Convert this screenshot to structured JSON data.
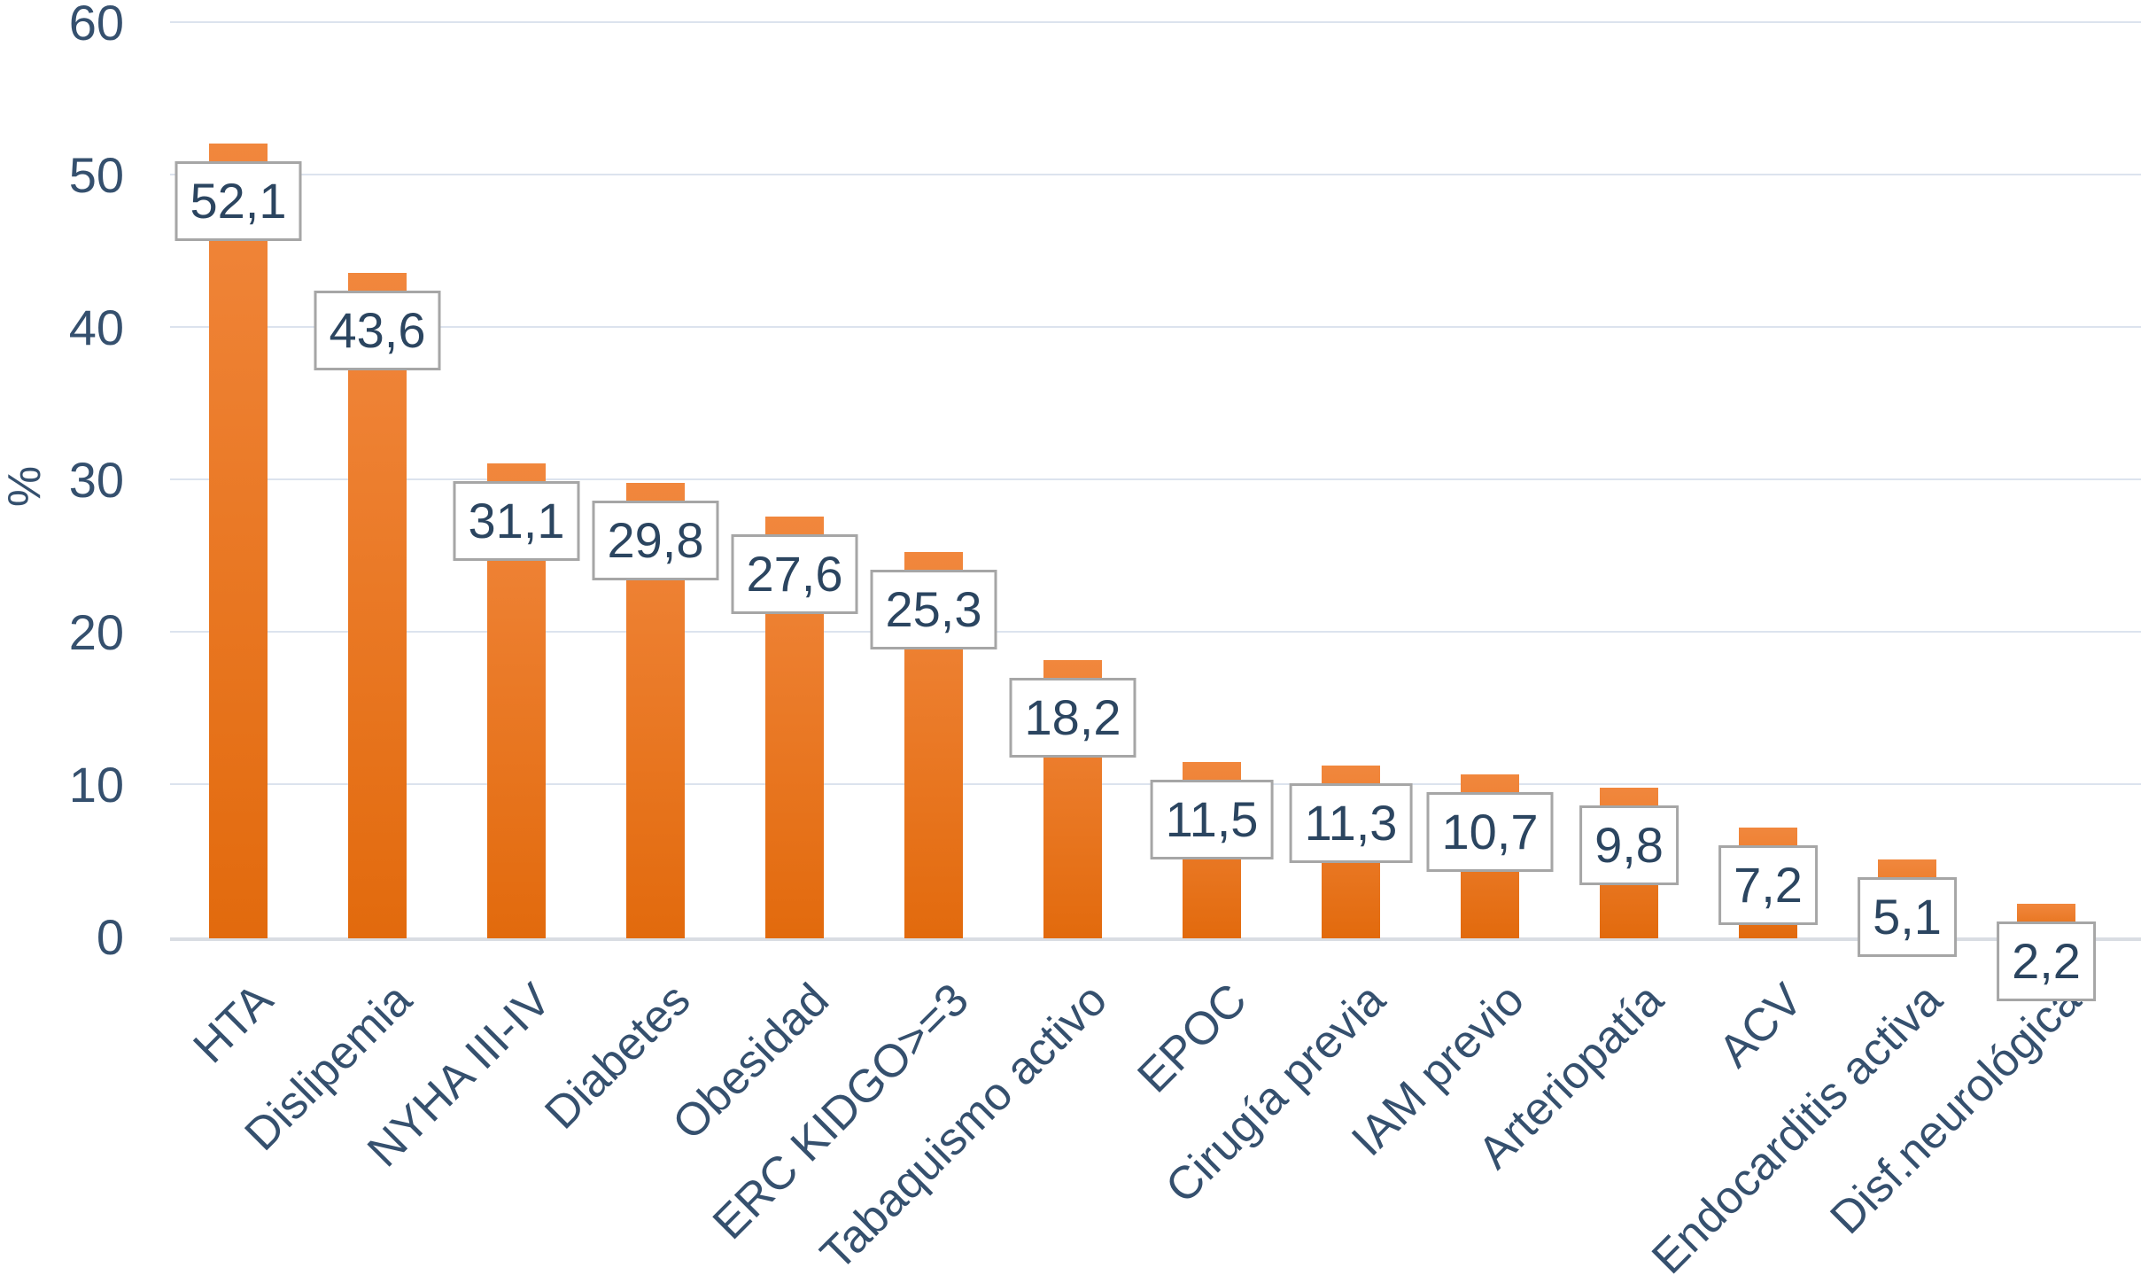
{
  "chart_data": {
    "type": "bar",
    "ylabel": "%",
    "ylim": [
      0,
      60
    ],
    "grid": true,
    "legend": false,
    "yticks": [
      {
        "value": 0,
        "label": "0"
      },
      {
        "value": 10,
        "label": "10"
      },
      {
        "value": 20,
        "label": "20"
      },
      {
        "value": 30,
        "label": "30"
      },
      {
        "value": 40,
        "label": "40"
      },
      {
        "value": 50,
        "label": "50"
      },
      {
        "value": 60,
        "label": "60"
      }
    ],
    "categories": [
      "HTA",
      "Dislipemia",
      "NYHA III-IV",
      "Diabetes",
      "Obesidad",
      "ERC KIDGO>=3",
      "Tabaquismo activo",
      "EPOC",
      "Cirugía previa",
      "IAM previo",
      "Arteriopatía",
      "ACV",
      "Endocarditis activa",
      "Disf.neurológica"
    ],
    "values": [
      52.1,
      43.6,
      31.1,
      29.8,
      27.6,
      25.3,
      18.2,
      11.5,
      11.3,
      10.7,
      9.8,
      7.2,
      5.1,
      2.2
    ],
    "value_labels": [
      "52,1",
      "43,6",
      "31,1",
      "29,8",
      "27,6",
      "25,3",
      "18,2",
      "11,5",
      "11,3",
      "10,7",
      "9,8",
      "7,2",
      "5,1",
      "2,2"
    ]
  },
  "colors": {
    "background": "#FFFFFF",
    "bar_gradient_top": "#F1873D",
    "bar_gradient_bottom": "#E26A0D",
    "gridline": "#DCE3EE",
    "axis_line": "#D9DDE3",
    "axis_text": "#35506E",
    "value_text": "#2B4560",
    "label_box_border": "#A6A6A6",
    "label_box_bg": "#FFFFFF"
  }
}
